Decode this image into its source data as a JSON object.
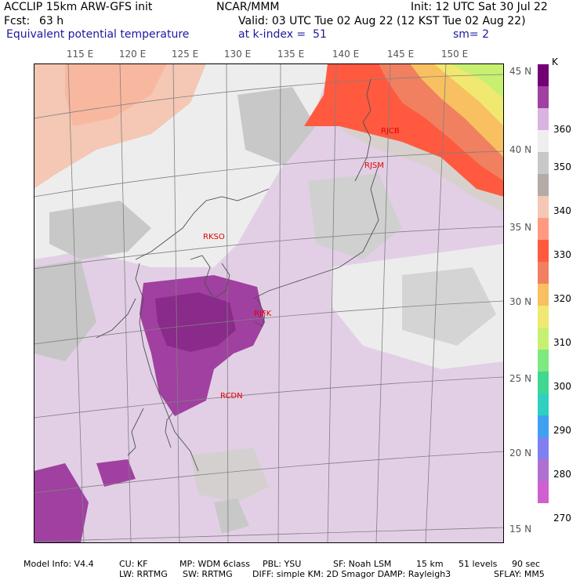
{
  "header": {
    "model": "ACCLIP 15km ARW-GFS init",
    "fcst_label": "Fcst:",
    "fcst_value": "63 h",
    "center": "NCAR/MMM",
    "init": "Init: 12 UTC Sat 30 Jul 22",
    "valid": "Valid: 03 UTC Tue 02 Aug 22 (12 KST Tue 02 Aug 22)",
    "field": "Equivalent potential temperature",
    "level": "at k-index =  51",
    "smooth": "sm= 2"
  },
  "map": {
    "lon_labels": [
      "115 E",
      "120 E",
      "125 E",
      "130 E",
      "135 E",
      "140 E",
      "145 E",
      "150 E"
    ],
    "lat_labels": [
      "45 N",
      "40 N",
      "35 N",
      "30 N",
      "25 N",
      "20 N",
      "15 N"
    ],
    "stations": [
      "RJCB",
      "RJSM",
      "RKSO",
      "RJFK",
      "RCDN"
    ]
  },
  "colorbar": {
    "unit": "K",
    "labels": [
      "360",
      "350",
      "340",
      "330",
      "320",
      "310",
      "300",
      "290",
      "280",
      "270"
    ],
    "colors": [
      "#730073",
      "#a040a0",
      "#d9b4e0",
      "#eeeeee",
      "#c8c8c8",
      "#b4aaa6",
      "#f4c8b4",
      "#ff9a80",
      "#ff5a40",
      "#f08060",
      "#f8c060",
      "#f0e870",
      "#c8f070",
      "#80e880",
      "#40d890",
      "#30d0c0",
      "#40a0f0",
      "#8080f0",
      "#b070d0",
      "#d060d0"
    ]
  },
  "footer": {
    "model_info": "Model Info: V4.4",
    "cu": "CU: KF",
    "mp": "MP: WDM 6class",
    "pbl": "PBL: YSU",
    "sf": "SF: Noah LSM",
    "res": "15 km",
    "levels": "51 levels",
    "dt": "90 sec",
    "lw": "LW: RRTMG",
    "sw": "SW: RRTMG",
    "diff": "DIFF: simple KM: 2D Smagor DAMP: Rayleigh3",
    "sflay": "SFLAY: MM5"
  }
}
